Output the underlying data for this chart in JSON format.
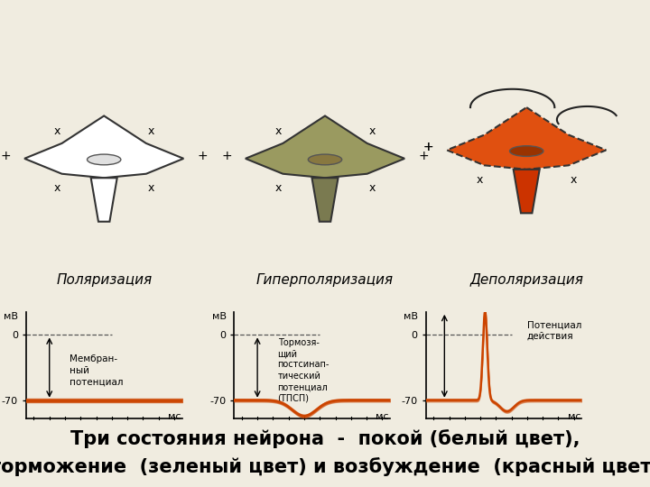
{
  "title_text": "Три состояния нейрона  -  покой (белый цвет),\nторможение  (зеленый цвет) и возбуждение  (красный цвет)",
  "title_bg_color": "#7dc832",
  "title_text_color": "#000000",
  "title_fontsize": 15,
  "background_color": "#f0ece0",
  "subplot_labels": [
    "Поляризация",
    "Гиперполяризация",
    "Деполяризация"
  ],
  "mv_label": "мВ",
  "ms_label": "мс",
  "line_color": "#cc4400",
  "dashed_color": "#555555",
  "annotation1": "Мембран-\nный\nпотенциал",
  "annotation2": "Тормозя-\nщий\nпостсинап-\nтический\nпотенциал\n(ТПСП)",
  "annotation3": "Потенциал\nдействия",
  "neuron1_body_color": "white",
  "neuron1_axon_color": "white",
  "neuron1_nucleus_color": "#e0e0e0",
  "neuron2_body_color": "#9a9a60",
  "neuron2_axon_color": "#7a7a50",
  "neuron2_nucleus_color": "#887840",
  "neuron3_body_color": "#e05010",
  "neuron3_axon_color": "#cc3300",
  "neuron3_nucleus_color": "#993300"
}
